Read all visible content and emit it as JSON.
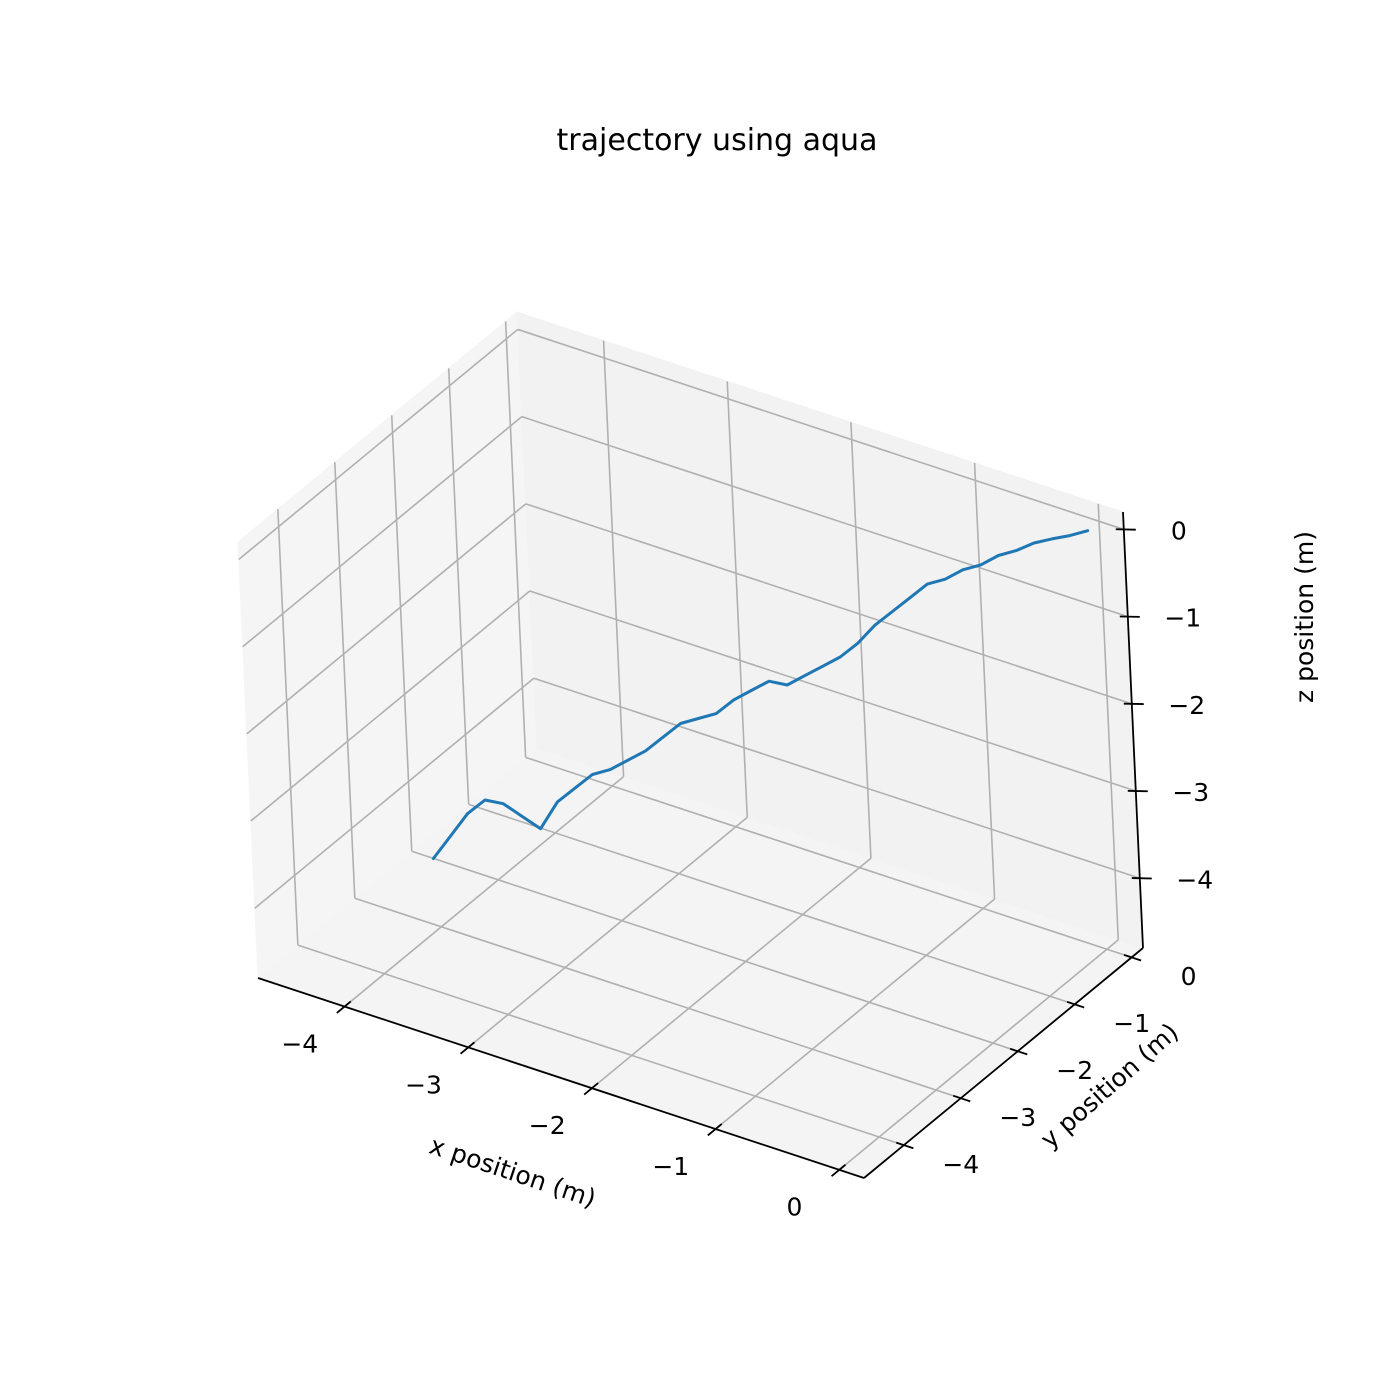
{
  "chart_data": {
    "type": "line3d",
    "title": "trajectory using aqua",
    "xlabel": "x position (m)",
    "ylabel": "y position (m)",
    "zlabel": "z position (m)",
    "xlim": [
      -4.7,
      0.2
    ],
    "ylim": [
      -4.7,
      0.2
    ],
    "zlim": [
      -4.8,
      0.2
    ],
    "xticks": [
      -4,
      -3,
      -2,
      -1,
      0
    ],
    "yticks": [
      -4,
      -3,
      -2,
      -1,
      0
    ],
    "zticks": [
      -4,
      -3,
      -2,
      -1,
      0
    ],
    "xtick_labels": [
      "−4",
      "−3",
      "−2",
      "−1",
      "0"
    ],
    "ytick_labels": [
      "−4",
      "−3",
      "−2",
      "−1",
      "0"
    ],
    "ztick_labels": [
      "−4",
      "−3",
      "−2",
      "−1",
      "0"
    ],
    "grid": true,
    "series": [
      {
        "color": "#1f77b4",
        "x": [
          -3.7,
          -3.6,
          -3.5,
          -3.4,
          -3.3,
          -3.2,
          -3.1,
          -3.0,
          -2.9,
          -2.8,
          -2.7,
          -2.6,
          -2.5,
          -2.4,
          -2.3,
          -2.2,
          -2.1,
          -2.0,
          -1.9,
          -1.8,
          -1.7,
          -1.6,
          -1.5,
          -1.4,
          -1.3,
          -1.2,
          -1.1,
          -1.0,
          -0.9,
          -0.8,
          -0.7,
          -0.6,
          -0.5,
          -0.4,
          -0.3,
          -0.2,
          -0.1,
          0.0
        ],
        "y": [
          -3.7,
          -3.6,
          -3.5,
          -3.4,
          -3.3,
          -3.2,
          -3.1,
          -3.0,
          -2.9,
          -2.8,
          -2.7,
          -2.6,
          -2.5,
          -2.4,
          -2.3,
          -2.2,
          -2.1,
          -2.0,
          -1.9,
          -1.8,
          -1.7,
          -1.6,
          -1.5,
          -1.4,
          -1.3,
          -1.2,
          -1.1,
          -1.0,
          -0.9,
          -0.8,
          -0.7,
          -0.6,
          -0.5,
          -0.4,
          -0.3,
          -0.2,
          -0.1,
          0.0
        ],
        "z": [
          -3.5,
          -3.25,
          -3.0,
          -2.85,
          -2.9,
          -3.05,
          -3.2,
          -2.9,
          -2.75,
          -2.6,
          -2.55,
          -2.45,
          -2.35,
          -2.2,
          -2.05,
          -2.0,
          -1.95,
          -1.8,
          -1.7,
          -1.6,
          -1.65,
          -1.55,
          -1.45,
          -1.35,
          -1.2,
          -1.0,
          -0.85,
          -0.7,
          -0.55,
          -0.5,
          -0.4,
          -0.35,
          -0.25,
          -0.2,
          -0.12,
          -0.08,
          -0.05,
          0.0
        ]
      }
    ]
  }
}
